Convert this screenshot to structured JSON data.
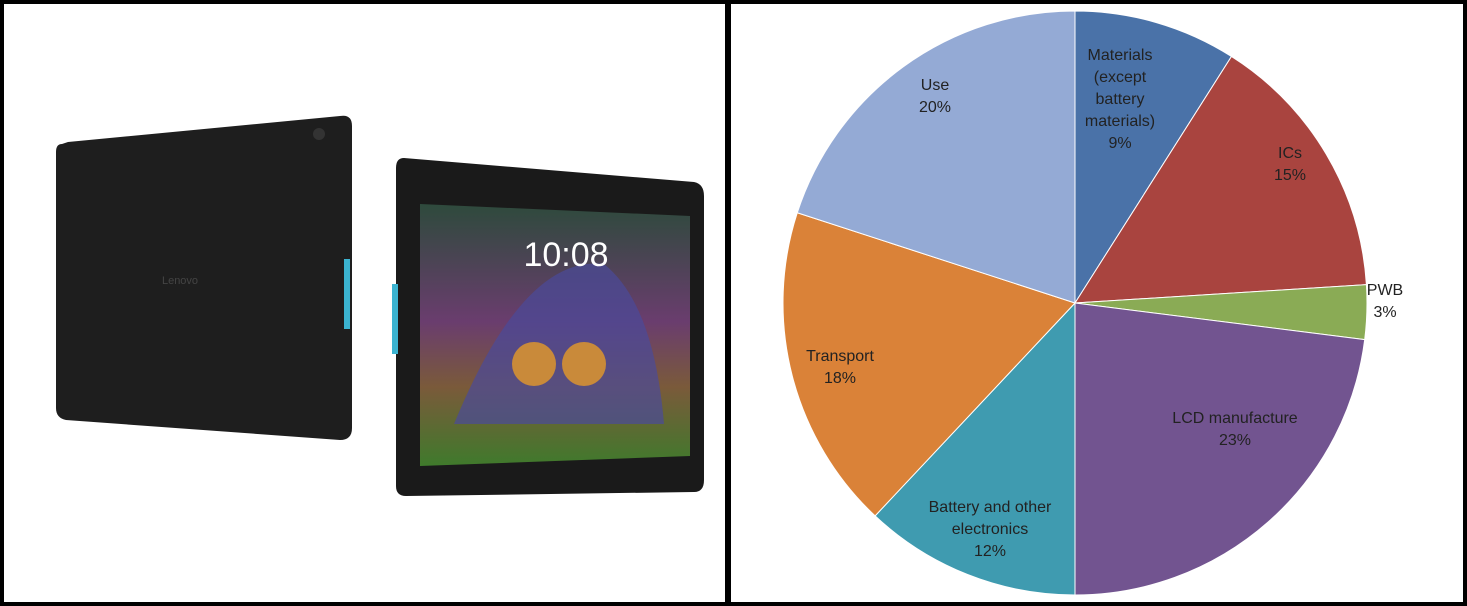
{
  "photo": {
    "brand": "Lenovo",
    "clock": "10:08"
  },
  "chart_data": {
    "type": "pie",
    "categories": [
      "Materials (except battery materials)",
      "ICs",
      "PWB",
      "LCD manufacture",
      "Battery and other electronics",
      "Transport",
      "Use"
    ],
    "values": [
      9,
      15,
      3,
      23,
      12,
      18,
      20
    ],
    "value_labels": [
      "9%",
      "15%",
      "3%",
      "23%",
      "12%",
      "18%",
      "20%"
    ],
    "colors": [
      "#4a72a8",
      "#a9443f",
      "#8aab55",
      "#725490",
      "#3f9bb0",
      "#da8238",
      "#94aad5"
    ]
  }
}
